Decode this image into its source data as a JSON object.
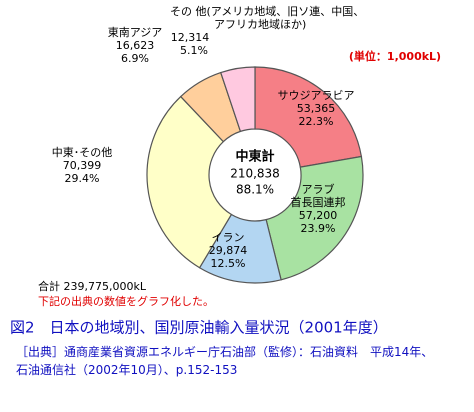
{
  "chart_data": {
    "type": "donut",
    "unit_label": "(単位：1,000kL)",
    "categories": [
      "サウジアラビア",
      "アラブ\n首長国連邦",
      "イラン",
      "中東･その他",
      "東南アジア",
      "その 他(アメリカ地域、旧ソ連、中国、\nアフリカ地域ほか)"
    ],
    "values": [
      53365,
      57200,
      29874,
      70399,
      16623,
      12314
    ],
    "value_labels": [
      "53,365",
      "57,200",
      "29,874",
      "70,399",
      "16,623",
      "12,314"
    ],
    "percents": [
      22.3,
      23.9,
      12.5,
      29.4,
      6.9,
      5.1
    ],
    "percent_labels": [
      "22.3%",
      "23.9%",
      "12.5%",
      "29.4%",
      "6.9%",
      "5.1%"
    ],
    "colors": [
      "#f57f86",
      "#a8e2a2",
      "#b3d6f2",
      "#ffffc8",
      "#ffcf9c",
      "#ffc9e0"
    ],
    "center": {
      "title": "中東計",
      "value": "210,838",
      "percent": "88.1%"
    },
    "total": "合計 239,775,000kL",
    "note": "下記の出典の数値をグラフ化した。",
    "title": "図2　日本の地域別、国別原油輸入量状況（2001年度）",
    "source": "［出典］通商産業省資源エネルギー庁石油部（監修）：石油資料　平成14年、\n石油通信社（2002年10月）、p.152-153"
  }
}
